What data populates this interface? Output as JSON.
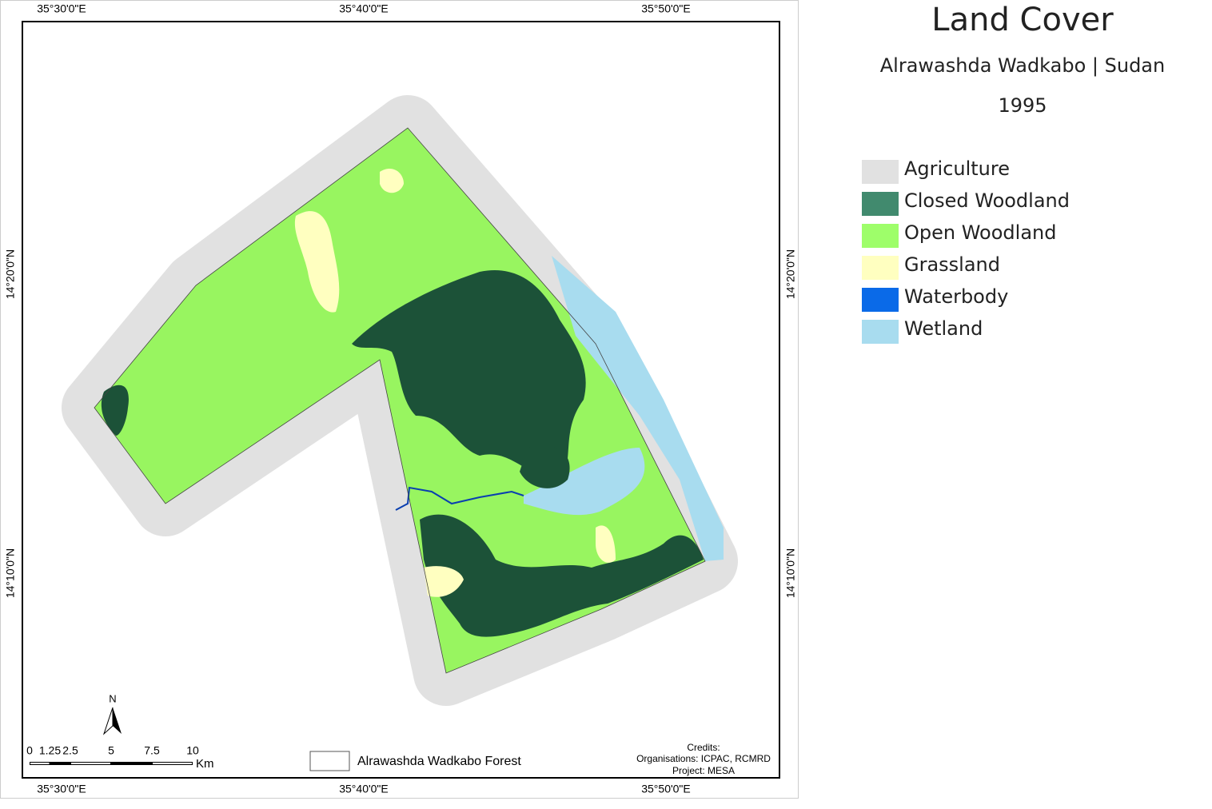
{
  "map": {
    "graticule": {
      "top": [
        "35°30'0\"E",
        "35°40'0\"E",
        "35°50'0\"E"
      ],
      "bottom": [
        "35°30'0\"E",
        "35°40'0\"E",
        "35°50'0\"E"
      ],
      "left": [
        "14°20'0\"N",
        "14°10'0\"N"
      ],
      "right": [
        "14°20'0\"N",
        "14°10'0\"N"
      ]
    },
    "north": "N",
    "scale_bar": {
      "labels": [
        "0",
        "1.25",
        "2.5",
        "5",
        "7.5",
        "10"
      ],
      "unit": "Km"
    },
    "boundary_legend": "Alrawashda Wadkabo Forest",
    "credits": [
      "Credits:",
      "Organisations: ICPAC, RCMRD",
      "Project: MESA"
    ]
  },
  "legend": {
    "title": "Land Cover",
    "subtitle": "Alrawashda Wadkabo | Sudan",
    "year": "1995",
    "items": [
      {
        "label": "Agriculture",
        "color": "#e1e1e1"
      },
      {
        "label": "Closed Woodland",
        "color": "#418a6e"
      },
      {
        "label": "Open Woodland",
        "color": "#9efe6a"
      },
      {
        "label": "Grassland",
        "color": "#ffffc0"
      },
      {
        "label": "Waterbody",
        "color": "#0a6ae8"
      },
      {
        "label": "Wetland",
        "color": "#a8dcef"
      }
    ]
  }
}
